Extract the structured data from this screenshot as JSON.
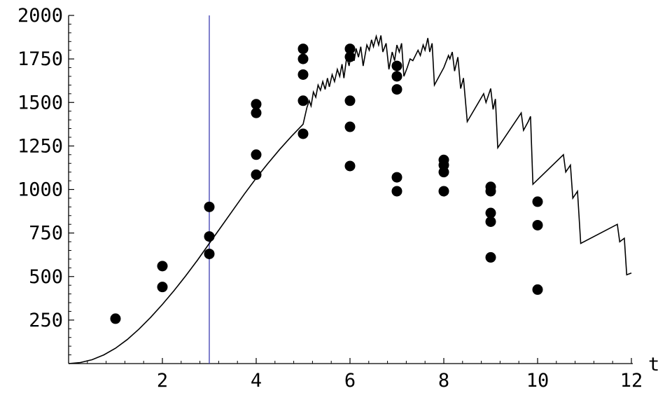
{
  "chart_data": {
    "type": "scatter",
    "title": "",
    "xlabel": "t",
    "ylabel": "",
    "xlim": [
      0,
      12
    ],
    "ylim": [
      0,
      2000
    ],
    "grid": false,
    "legend": "none",
    "x_ticks": [
      2,
      4,
      6,
      8,
      10,
      12
    ],
    "x_tick_labels": [
      "2",
      "4",
      "6",
      "8",
      "10",
      "12"
    ],
    "y_ticks": [
      250,
      500,
      750,
      1000,
      1250,
      1500,
      1750,
      2000
    ],
    "y_tick_labels": [
      "250",
      "500",
      "750",
      "1000",
      "1250",
      "1500",
      "1750",
      "2000"
    ],
    "x_minor_step": 0.4,
    "y_minor_step": 50,
    "vertical_marker": {
      "x": 3,
      "color": "#3b3bb0"
    },
    "colors": {
      "points": "#000000",
      "curve": "#000000",
      "axes": "#000000"
    },
    "series": [
      {
        "type": "scatter",
        "points": [
          [
            1,
            258
          ],
          [
            2,
            440
          ],
          [
            2,
            560
          ],
          [
            3,
            630
          ],
          [
            3,
            730
          ],
          [
            3,
            900
          ],
          [
            4,
            1085
          ],
          [
            4,
            1200
          ],
          [
            4,
            1440
          ],
          [
            4,
            1490
          ],
          [
            5,
            1320
          ],
          [
            5,
            1510
          ],
          [
            5,
            1660
          ],
          [
            5,
            1750
          ],
          [
            5,
            1808
          ],
          [
            6,
            1135
          ],
          [
            6,
            1360
          ],
          [
            6,
            1510
          ],
          [
            6,
            1762
          ],
          [
            6,
            1808
          ],
          [
            7,
            990
          ],
          [
            7,
            1070
          ],
          [
            7,
            1575
          ],
          [
            7,
            1650
          ],
          [
            7,
            1710
          ],
          [
            8,
            990
          ],
          [
            8,
            1100
          ],
          [
            8,
            1140
          ],
          [
            8,
            1170
          ],
          [
            9,
            610
          ],
          [
            9,
            815
          ],
          [
            9,
            865
          ],
          [
            9,
            990
          ],
          [
            9,
            1015
          ],
          [
            10,
            425
          ],
          [
            10,
            795
          ],
          [
            10,
            930
          ]
        ]
      },
      {
        "type": "line",
        "points": [
          [
            0,
            0
          ],
          [
            0.25,
            6
          ],
          [
            0.5,
            22
          ],
          [
            0.75,
            50
          ],
          [
            1,
            88
          ],
          [
            1.25,
            138
          ],
          [
            1.5,
            198
          ],
          [
            1.75,
            266
          ],
          [
            2,
            340
          ],
          [
            2.25,
            420
          ],
          [
            2.5,
            505
          ],
          [
            2.75,
            595
          ],
          [
            3,
            690
          ],
          [
            3.25,
            785
          ],
          [
            3.5,
            880
          ],
          [
            3.75,
            975
          ],
          [
            4,
            1065
          ],
          [
            4.25,
            1150
          ],
          [
            4.5,
            1230
          ],
          [
            4.75,
            1305
          ],
          [
            5,
            1375
          ],
          [
            5.08,
            1470
          ],
          [
            5.13,
            1510
          ],
          [
            5.17,
            1480
          ],
          [
            5.22,
            1560
          ],
          [
            5.27,
            1530
          ],
          [
            5.32,
            1600
          ],
          [
            5.37,
            1570
          ],
          [
            5.42,
            1620
          ],
          [
            5.47,
            1575
          ],
          [
            5.52,
            1640
          ],
          [
            5.56,
            1590
          ],
          [
            5.62,
            1660
          ],
          [
            5.67,
            1620
          ],
          [
            5.73,
            1690
          ],
          [
            5.78,
            1650
          ],
          [
            5.83,
            1720
          ],
          [
            5.87,
            1640
          ],
          [
            5.93,
            1760
          ],
          [
            5.98,
            1710
          ],
          [
            6.03,
            1790
          ],
          [
            6.09,
            1740
          ],
          [
            6.13,
            1810
          ],
          [
            6.18,
            1760
          ],
          [
            6.23,
            1820
          ],
          [
            6.28,
            1710
          ],
          [
            6.36,
            1830
          ],
          [
            6.41,
            1800
          ],
          [
            6.46,
            1860
          ],
          [
            6.5,
            1820
          ],
          [
            6.56,
            1880
          ],
          [
            6.61,
            1830
          ],
          [
            6.66,
            1885
          ],
          [
            6.7,
            1790
          ],
          [
            6.77,
            1840
          ],
          [
            6.83,
            1690
          ],
          [
            6.9,
            1790
          ],
          [
            6.95,
            1740
          ],
          [
            7,
            1830
          ],
          [
            7.05,
            1790
          ],
          [
            7.1,
            1840
          ],
          [
            7.15,
            1650
          ],
          [
            7.22,
            1700
          ],
          [
            7.28,
            1750
          ],
          [
            7.34,
            1740
          ],
          [
            7.45,
            1800
          ],
          [
            7.5,
            1770
          ],
          [
            7.56,
            1830
          ],
          [
            7.6,
            1800
          ],
          [
            7.66,
            1870
          ],
          [
            7.7,
            1790
          ],
          [
            7.75,
            1840
          ],
          [
            7.8,
            1600
          ],
          [
            8,
            1700
          ],
          [
            8.1,
            1770
          ],
          [
            8.13,
            1750
          ],
          [
            8.18,
            1790
          ],
          [
            8.23,
            1680
          ],
          [
            8.3,
            1760
          ],
          [
            8.36,
            1580
          ],
          [
            8.42,
            1640
          ],
          [
            8.5,
            1390
          ],
          [
            8.85,
            1550
          ],
          [
            8.9,
            1500
          ],
          [
            9,
            1580
          ],
          [
            9.05,
            1460
          ],
          [
            9.1,
            1520
          ],
          [
            9.15,
            1240
          ],
          [
            9.65,
            1440
          ],
          [
            9.7,
            1340
          ],
          [
            9.8,
            1390
          ],
          [
            9.85,
            1420
          ],
          [
            9.9,
            1030
          ],
          [
            10.55,
            1200
          ],
          [
            10.6,
            1100
          ],
          [
            10.7,
            1140
          ],
          [
            10.75,
            950
          ],
          [
            10.85,
            990
          ],
          [
            10.92,
            690
          ],
          [
            11.7,
            800
          ],
          [
            11.75,
            700
          ],
          [
            11.85,
            720
          ],
          [
            11.9,
            510
          ],
          [
            12,
            520
          ]
        ]
      }
    ]
  }
}
